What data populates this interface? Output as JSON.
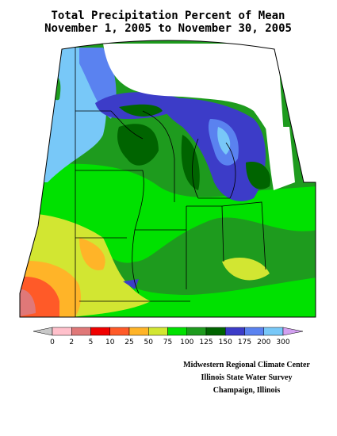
{
  "header": {
    "title": "Total Precipitation Percent of Mean",
    "subtitle": "November 1, 2005 to November 30, 2005"
  },
  "legend": {
    "labels": [
      0,
      2,
      5,
      10,
      25,
      50,
      75,
      100,
      125,
      150,
      175,
      200,
      300
    ],
    "colors": [
      "#ffc0cb",
      "#e07878",
      "#f00000",
      "#ff5a28",
      "#ffb428",
      "#d2e632",
      "#00e100",
      "#1e9b1e",
      "#006400",
      "#3c3cc8",
      "#5a82f0",
      "#78c8f8"
    ],
    "below_color": "#c8c8c8",
    "above_color": "#d2a0f0"
  },
  "credits": [
    "Midwestern Regional Climate Center",
    "Illinois State Water Survey",
    "Champaign, Illinois"
  ]
}
